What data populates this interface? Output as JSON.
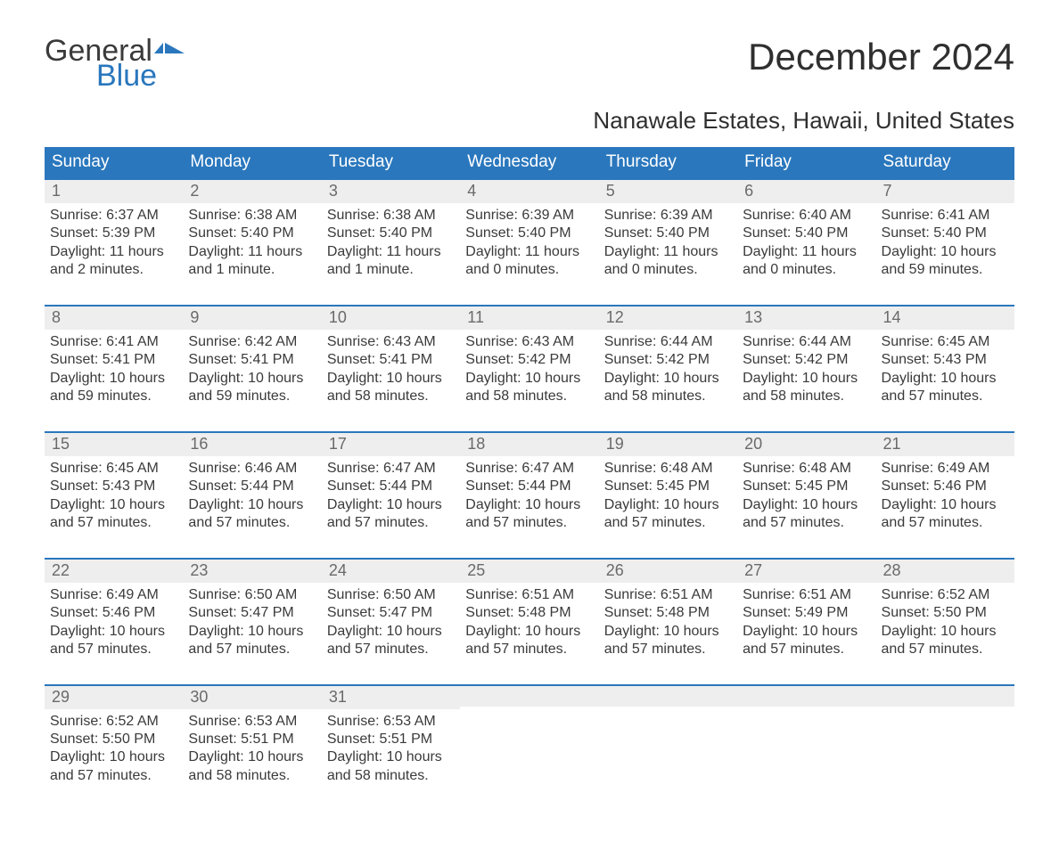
{
  "logo": {
    "general": "General",
    "blue": "Blue",
    "flag_color": "#2a77bd"
  },
  "title": "December 2024",
  "subtitle": "Nanawale Estates, Hawaii, United States",
  "colors": {
    "header_bg": "#2a77bd",
    "header_text": "#ffffff",
    "daynum_bg": "#eeeeee",
    "body_text": "#3a3a3a",
    "rule": "#2a77bd"
  },
  "day_headers": [
    "Sunday",
    "Monday",
    "Tuesday",
    "Wednesday",
    "Thursday",
    "Friday",
    "Saturday"
  ],
  "weeks": [
    [
      {
        "n": "1",
        "sunrise": "6:37 AM",
        "sunset": "5:39 PM",
        "daylight": "11 hours and 2 minutes."
      },
      {
        "n": "2",
        "sunrise": "6:38 AM",
        "sunset": "5:40 PM",
        "daylight": "11 hours and 1 minute."
      },
      {
        "n": "3",
        "sunrise": "6:38 AM",
        "sunset": "5:40 PM",
        "daylight": "11 hours and 1 minute."
      },
      {
        "n": "4",
        "sunrise": "6:39 AM",
        "sunset": "5:40 PM",
        "daylight": "11 hours and 0 minutes."
      },
      {
        "n": "5",
        "sunrise": "6:39 AM",
        "sunset": "5:40 PM",
        "daylight": "11 hours and 0 minutes."
      },
      {
        "n": "6",
        "sunrise": "6:40 AM",
        "sunset": "5:40 PM",
        "daylight": "11 hours and 0 minutes."
      },
      {
        "n": "7",
        "sunrise": "6:41 AM",
        "sunset": "5:40 PM",
        "daylight": "10 hours and 59 minutes."
      }
    ],
    [
      {
        "n": "8",
        "sunrise": "6:41 AM",
        "sunset": "5:41 PM",
        "daylight": "10 hours and 59 minutes."
      },
      {
        "n": "9",
        "sunrise": "6:42 AM",
        "sunset": "5:41 PM",
        "daylight": "10 hours and 59 minutes."
      },
      {
        "n": "10",
        "sunrise": "6:43 AM",
        "sunset": "5:41 PM",
        "daylight": "10 hours and 58 minutes."
      },
      {
        "n": "11",
        "sunrise": "6:43 AM",
        "sunset": "5:42 PM",
        "daylight": "10 hours and 58 minutes."
      },
      {
        "n": "12",
        "sunrise": "6:44 AM",
        "sunset": "5:42 PM",
        "daylight": "10 hours and 58 minutes."
      },
      {
        "n": "13",
        "sunrise": "6:44 AM",
        "sunset": "5:42 PM",
        "daylight": "10 hours and 58 minutes."
      },
      {
        "n": "14",
        "sunrise": "6:45 AM",
        "sunset": "5:43 PM",
        "daylight": "10 hours and 57 minutes."
      }
    ],
    [
      {
        "n": "15",
        "sunrise": "6:45 AM",
        "sunset": "5:43 PM",
        "daylight": "10 hours and 57 minutes."
      },
      {
        "n": "16",
        "sunrise": "6:46 AM",
        "sunset": "5:44 PM",
        "daylight": "10 hours and 57 minutes."
      },
      {
        "n": "17",
        "sunrise": "6:47 AM",
        "sunset": "5:44 PM",
        "daylight": "10 hours and 57 minutes."
      },
      {
        "n": "18",
        "sunrise": "6:47 AM",
        "sunset": "5:44 PM",
        "daylight": "10 hours and 57 minutes."
      },
      {
        "n": "19",
        "sunrise": "6:48 AM",
        "sunset": "5:45 PM",
        "daylight": "10 hours and 57 minutes."
      },
      {
        "n": "20",
        "sunrise": "6:48 AM",
        "sunset": "5:45 PM",
        "daylight": "10 hours and 57 minutes."
      },
      {
        "n": "21",
        "sunrise": "6:49 AM",
        "sunset": "5:46 PM",
        "daylight": "10 hours and 57 minutes."
      }
    ],
    [
      {
        "n": "22",
        "sunrise": "6:49 AM",
        "sunset": "5:46 PM",
        "daylight": "10 hours and 57 minutes."
      },
      {
        "n": "23",
        "sunrise": "6:50 AM",
        "sunset": "5:47 PM",
        "daylight": "10 hours and 57 minutes."
      },
      {
        "n": "24",
        "sunrise": "6:50 AM",
        "sunset": "5:47 PM",
        "daylight": "10 hours and 57 minutes."
      },
      {
        "n": "25",
        "sunrise": "6:51 AM",
        "sunset": "5:48 PM",
        "daylight": "10 hours and 57 minutes."
      },
      {
        "n": "26",
        "sunrise": "6:51 AM",
        "sunset": "5:48 PM",
        "daylight": "10 hours and 57 minutes."
      },
      {
        "n": "27",
        "sunrise": "6:51 AM",
        "sunset": "5:49 PM",
        "daylight": "10 hours and 57 minutes."
      },
      {
        "n": "28",
        "sunrise": "6:52 AM",
        "sunset": "5:50 PM",
        "daylight": "10 hours and 57 minutes."
      }
    ],
    [
      {
        "n": "29",
        "sunrise": "6:52 AM",
        "sunset": "5:50 PM",
        "daylight": "10 hours and 57 minutes."
      },
      {
        "n": "30",
        "sunrise": "6:53 AM",
        "sunset": "5:51 PM",
        "daylight": "10 hours and 58 minutes."
      },
      {
        "n": "31",
        "sunrise": "6:53 AM",
        "sunset": "5:51 PM",
        "daylight": "10 hours and 58 minutes."
      },
      {
        "empty": true
      },
      {
        "empty": true
      },
      {
        "empty": true
      },
      {
        "empty": true
      }
    ]
  ],
  "labels": {
    "sunrise": "Sunrise:",
    "sunset": "Sunset:",
    "daylight": "Daylight:"
  }
}
